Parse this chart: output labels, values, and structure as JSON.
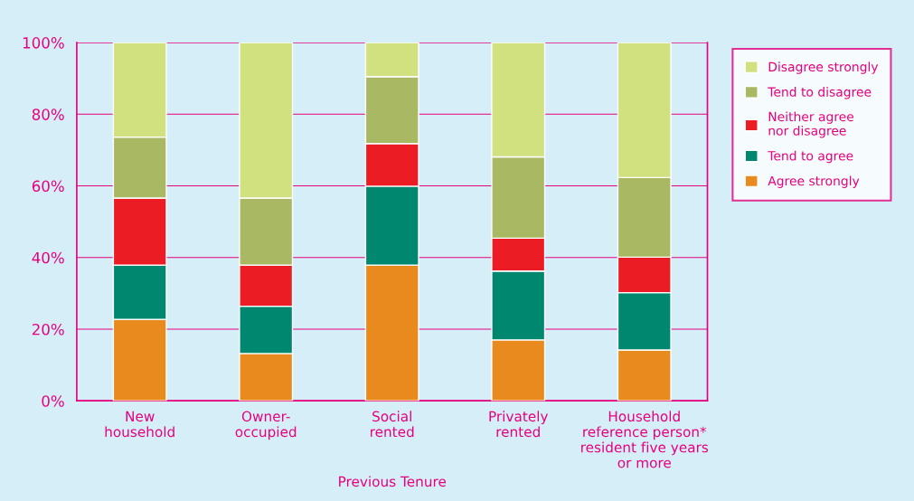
{
  "chart_data": {
    "type": "bar",
    "stacked": true,
    "xlabel": "Previous Tenure",
    "categories": [
      "New\nhousehold",
      "Owner-\noccupied",
      "Social\nrented",
      "Privately\nrented",
      "Household\nreference person*\nresident five years\nor more"
    ],
    "series": [
      {
        "name": "Agree strongly",
        "color": "#e98a1f",
        "values": [
          22.7,
          13.2,
          37.9,
          17.0,
          14.2
        ]
      },
      {
        "name": "Tend to agree",
        "color": "#00876f",
        "values": [
          15.2,
          13.2,
          22.0,
          19.2,
          16.0
        ]
      },
      {
        "name": "Neither agree\nnor disagree",
        "color": "#ec1c24",
        "values": [
          18.7,
          11.5,
          11.9,
          9.2,
          9.9
        ]
      },
      {
        "name": "Tend to disagree",
        "color": "#a9b862",
        "values": [
          17.0,
          18.7,
          18.7,
          22.7,
          22.2
        ]
      },
      {
        "name": "Disagree strongly",
        "color": "#d2e17f",
        "values": [
          26.4,
          43.4,
          9.5,
          31.9,
          37.7
        ]
      }
    ],
    "ylim": [
      0,
      100
    ],
    "yticks": [
      {
        "value": 0,
        "label": "0%"
      },
      {
        "value": 20,
        "label": "20%"
      },
      {
        "value": 40,
        "label": "40%"
      },
      {
        "value": 60,
        "label": "60%"
      },
      {
        "value": 80,
        "label": "80%"
      },
      {
        "value": 100,
        "label": "100%"
      }
    ],
    "grid": "y",
    "legend": "right"
  }
}
